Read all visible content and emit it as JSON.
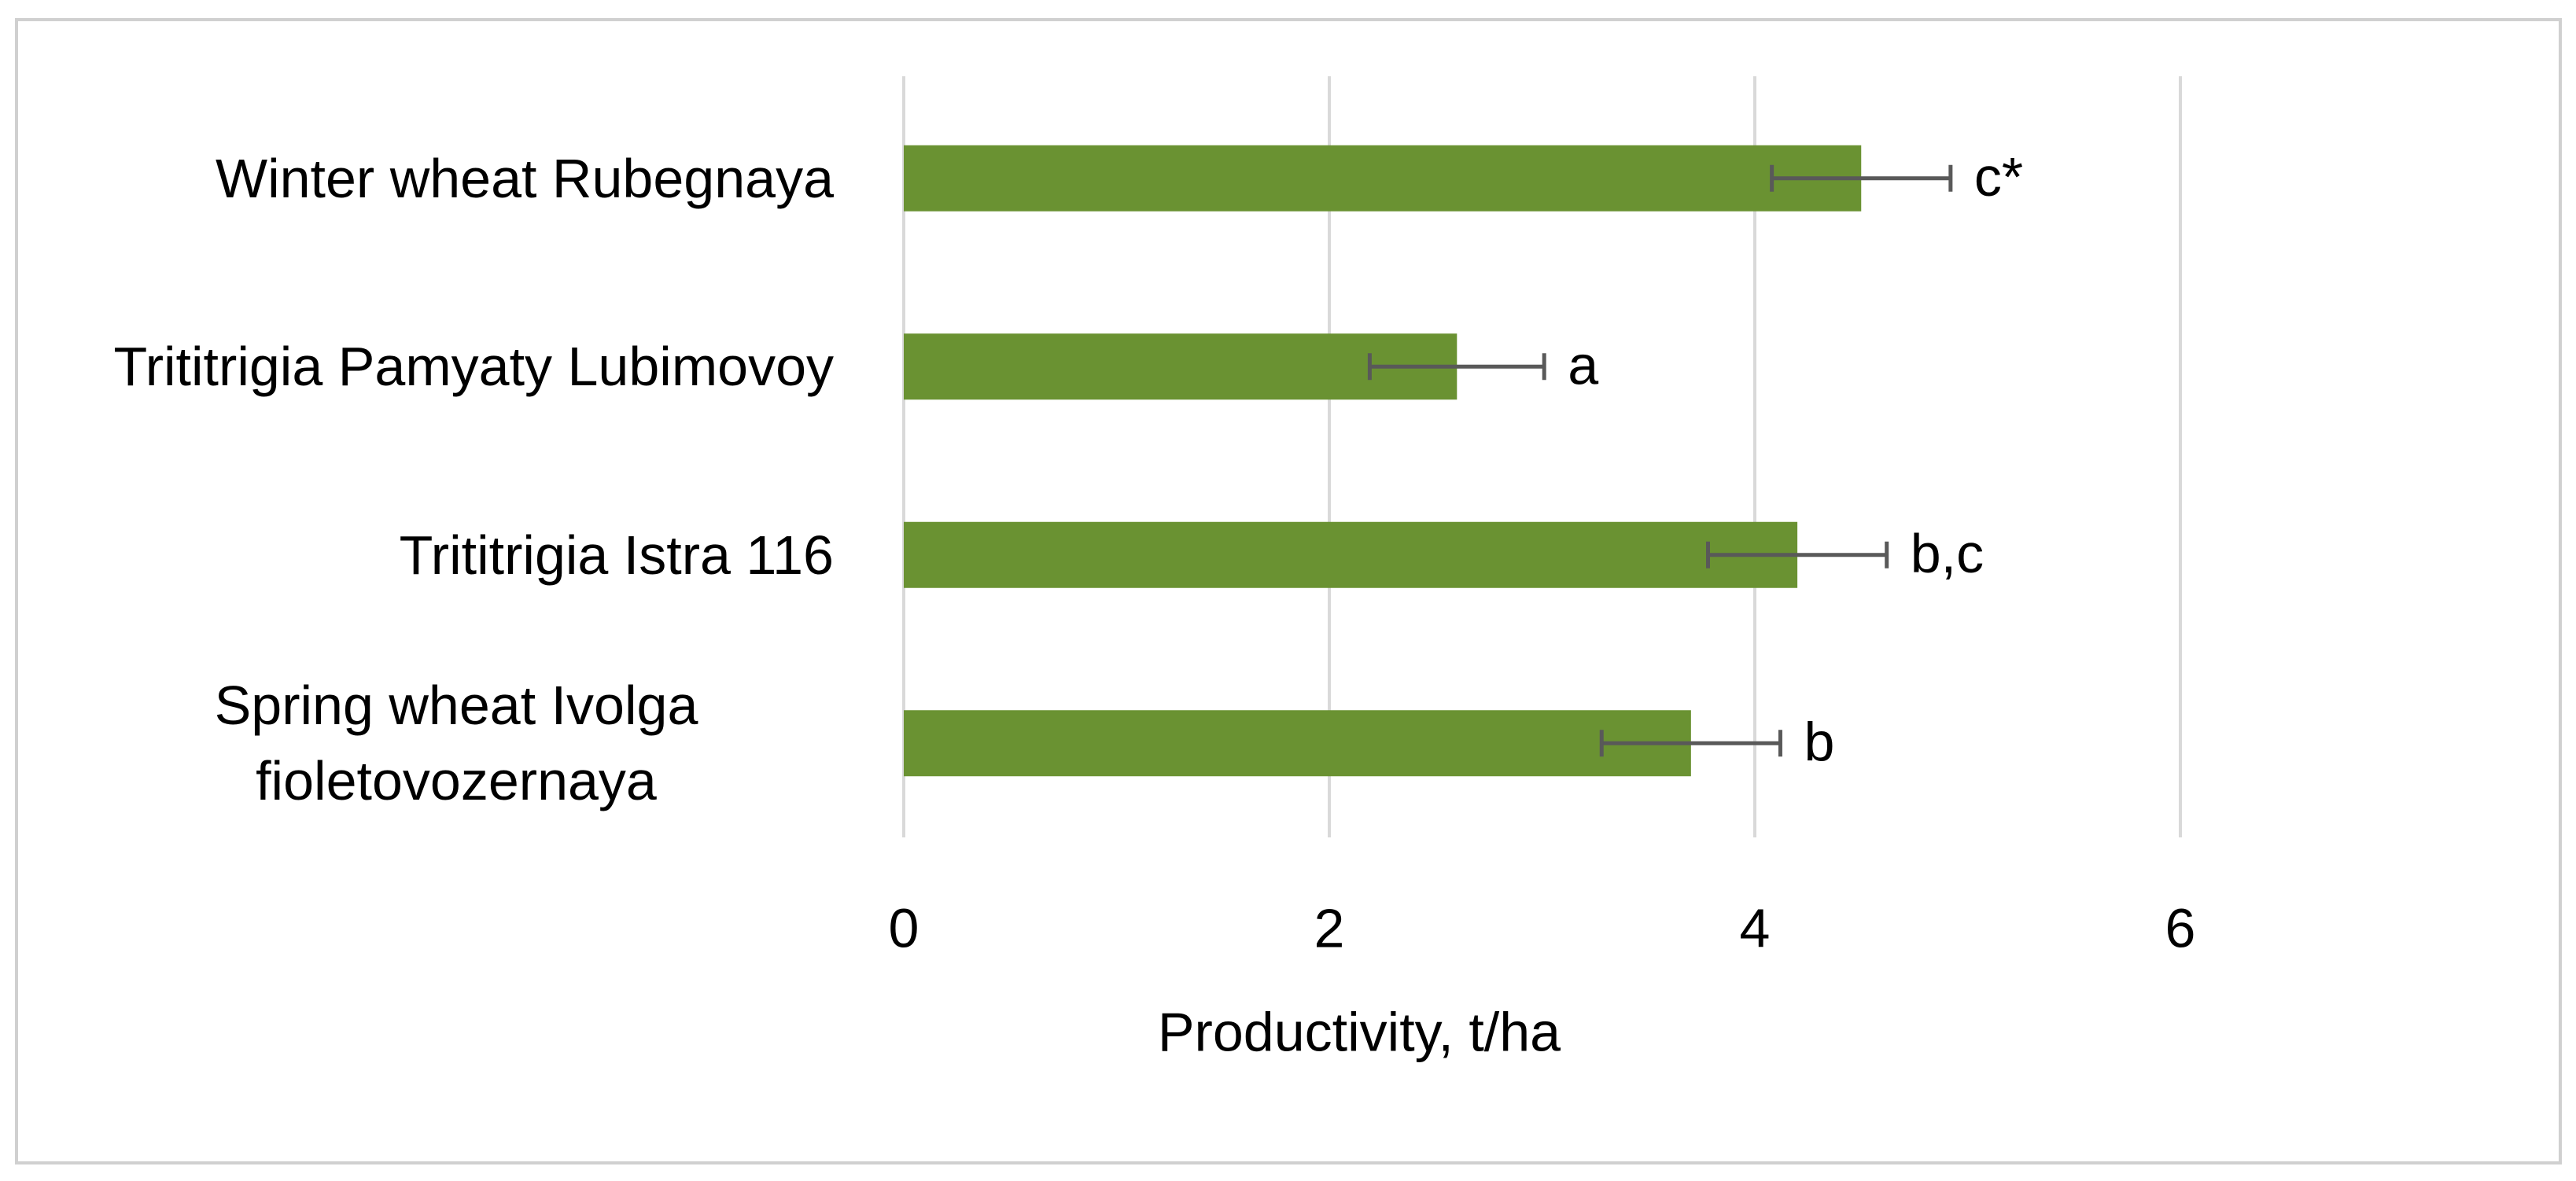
{
  "chart_data": {
    "type": "hbar",
    "x_label": "Productivity, t/ha",
    "categories": [
      "Winter wheat Rubegnaya",
      "Trititrigia Pamyaty Lubimovoy",
      "Trititrigia Istra 116",
      "Spring wheat Ivolga fioletovozernaya"
    ],
    "values": [
      4.5,
      2.6,
      4.2,
      3.7
    ],
    "errors": [
      0.42,
      0.41,
      0.42,
      0.42
    ],
    "significance_labels": [
      "c*",
      "a",
      "b,c",
      "b"
    ],
    "color": "#6a9232",
    "error_color": "#595959",
    "xlim": [
      0,
      6
    ],
    "xticks": [
      0,
      2,
      4,
      6
    ],
    "grid": true
  }
}
